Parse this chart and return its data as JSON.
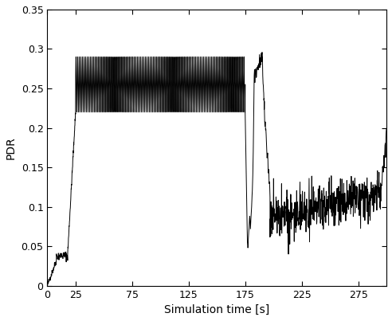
{
  "title": "",
  "xlabel": "Simulation time [s]",
  "ylabel": "PDR",
  "xlim": [
    0,
    300
  ],
  "ylim": [
    0,
    0.35
  ],
  "xticks": [
    0,
    25,
    75,
    125,
    175,
    225,
    275
  ],
  "yticks": [
    0,
    0.05,
    0.1,
    0.15,
    0.2,
    0.25,
    0.3,
    0.35
  ],
  "ytick_labels": [
    "0",
    "0.05",
    "0.1",
    "0.15",
    "0.2",
    "0.25",
    "0.3",
    "0.35"
  ],
  "line_color": "#000000",
  "bg_color": "#ffffff",
  "linewidth": 0.7,
  "osc_base": 0.255,
  "osc_amp": 0.035,
  "osc_freq_hz": 0.7,
  "seed": 42
}
